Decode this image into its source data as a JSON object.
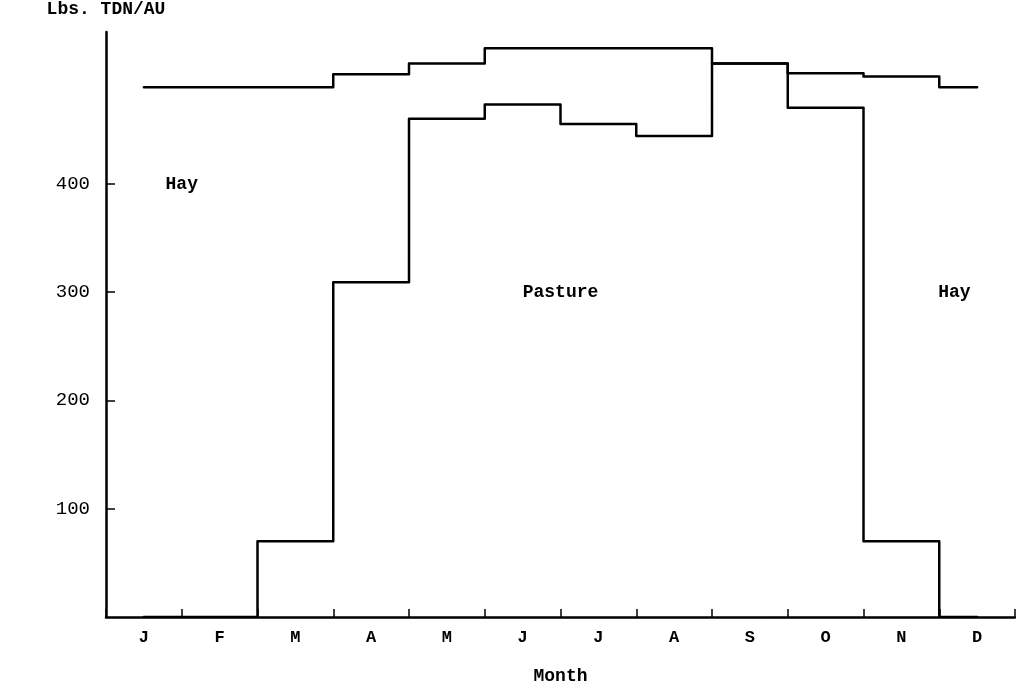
{
  "chart_data": {
    "type": "step",
    "ylabel": "Lbs. TDN/AU",
    "xlabel": "Month",
    "categories": [
      "J",
      "F",
      "M",
      "A",
      "M",
      "J",
      "J",
      "A",
      "S",
      "O",
      "N",
      "D"
    ],
    "series": [
      {
        "color": "#000000",
        "values": [
          489,
          489,
          489,
          501,
          511,
          525,
          525,
          525,
          511,
          502,
          499,
          489
        ]
      },
      {
        "color": "#000000",
        "values": [
          0,
          0,
          70,
          309,
          460,
          473,
          455,
          444,
          511,
          470,
          70,
          0
        ]
      }
    ],
    "ylim": [
      0,
      540
    ],
    "yticks": [
      100,
      200,
      300,
      400
    ],
    "annotations": [
      "Hay",
      "Pasture",
      "Hay"
    ],
    "grid": false,
    "marker": "none",
    "line_style": "solid"
  }
}
